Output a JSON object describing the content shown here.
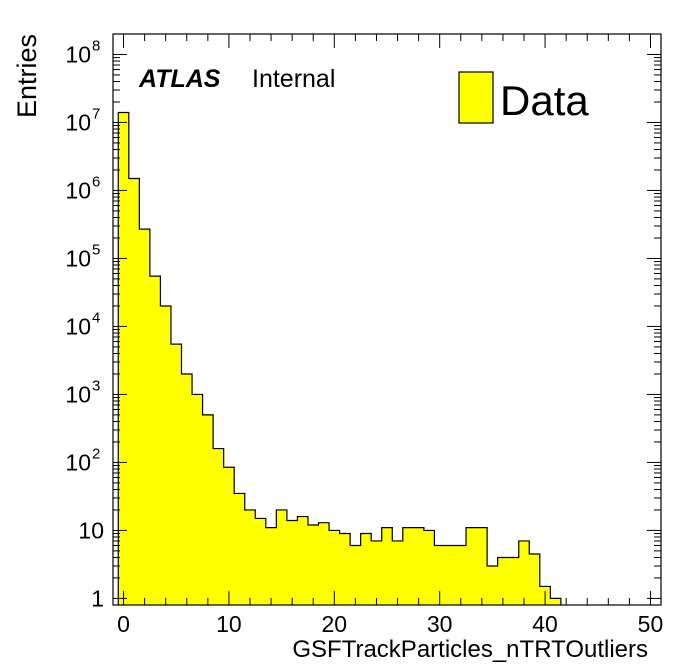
{
  "chart_data": {
    "type": "bar",
    "style": "histogram",
    "xlabel": "GSFTrackParticles_nTRTOutliers",
    "ylabel": "Entries",
    "xlim": [
      -1,
      51
    ],
    "ylim": [
      0.8,
      200000000
    ],
    "yscale": "log",
    "bin_width": 1,
    "bin_start": -0.5,
    "x_ticks": [
      0,
      10,
      20,
      30,
      40,
      50
    ],
    "x_tick_labels": [
      "0",
      "10",
      "20",
      "30",
      "40",
      "50"
    ],
    "y_tick_labels": [
      {
        "base": "1",
        "exp": ""
      },
      {
        "base": "10",
        "exp": ""
      },
      {
        "base": "10",
        "exp": "2"
      },
      {
        "base": "10",
        "exp": "3"
      },
      {
        "base": "10",
        "exp": "4"
      },
      {
        "base": "10",
        "exp": "5"
      },
      {
        "base": "10",
        "exp": "6"
      },
      {
        "base": "10",
        "exp": "7"
      },
      {
        "base": "10",
        "exp": "8"
      }
    ],
    "series": [
      {
        "name": "Data",
        "color": "#ffff00",
        "values": [
          14000000,
          1500000,
          270000,
          55000,
          20000,
          5500,
          2000,
          1000,
          500,
          160,
          85,
          35,
          20,
          15,
          11,
          20,
          14,
          16,
          12,
          13,
          10,
          9,
          6,
          9,
          7,
          11,
          7,
          11,
          11,
          10,
          6,
          6,
          6,
          11,
          11,
          3,
          4,
          4,
          7,
          4.5,
          1.5,
          1
        ]
      }
    ],
    "legend": {
      "position": "top-right",
      "entries": [
        "Data"
      ]
    },
    "annotation": {
      "bold": "ATLAS",
      "text": "Internal"
    }
  }
}
